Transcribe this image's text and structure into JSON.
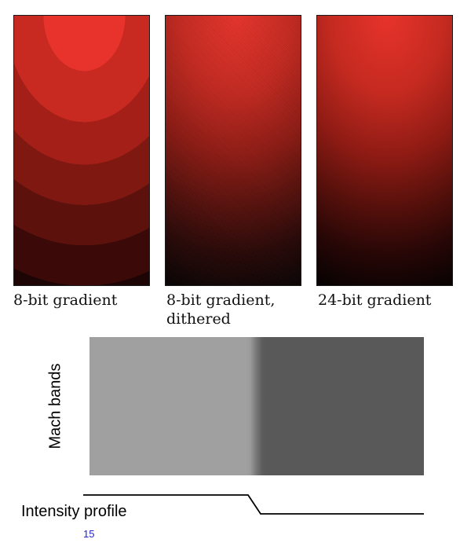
{
  "panels": [
    {
      "label": "8-bit gradient"
    },
    {
      "label": "8-bit gradient,\ndithered"
    },
    {
      "label": "24-bit gradient"
    }
  ],
  "mach": {
    "label": "Mach bands",
    "light_gray": "#a0a0a0",
    "dark_gray": "#595959"
  },
  "profile": {
    "label": "Intensity profile"
  },
  "page_number": "15",
  "colors": {
    "gradient_peak": "#e7332b",
    "gradient_base": "#080202",
    "page_number": "#2323c8"
  }
}
